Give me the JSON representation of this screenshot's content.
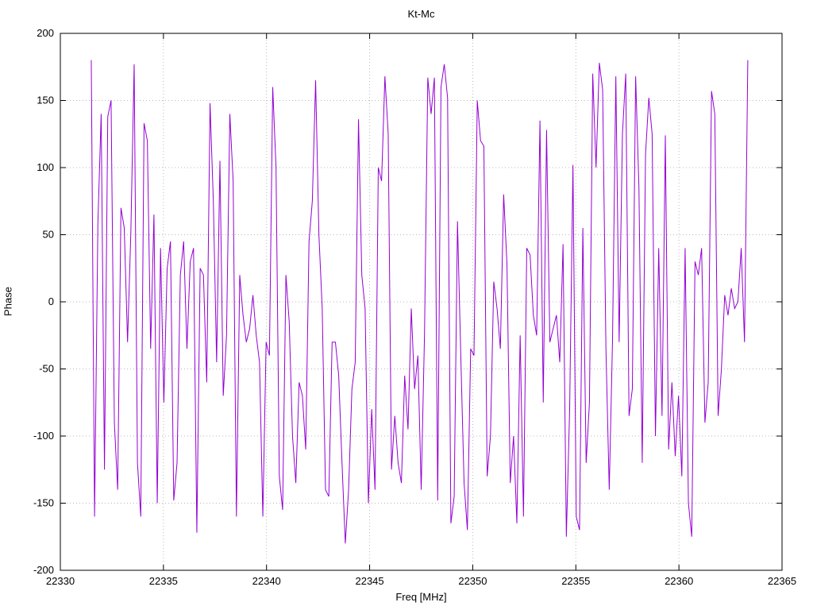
{
  "title": "Kt-Mc",
  "chart_data": {
    "type": "line",
    "title": "Kt-Mc",
    "xlabel": "Freq [MHz]",
    "ylabel": "Phase",
    "xlim": [
      22330,
      22365
    ],
    "ylim": [
      -200,
      200
    ],
    "xticks": [
      22330,
      22335,
      22340,
      22345,
      22350,
      22355,
      22360,
      22365
    ],
    "yticks": [
      -200,
      -150,
      -100,
      -50,
      0,
      50,
      100,
      150,
      200
    ],
    "grid": true,
    "legend": "none",
    "line_color": "#9400d3",
    "series": [
      {
        "name": "Kt-Mc",
        "x_start": 22331.5,
        "x_step": 0.16,
        "values": [
          180,
          -160,
          58,
          140,
          -125,
          138,
          150,
          -90,
          -140,
          70,
          55,
          -30,
          52,
          177,
          -120,
          -160,
          133,
          120,
          -35,
          65,
          -150,
          40,
          -75,
          25,
          45,
          -148,
          -120,
          20,
          45,
          -35,
          30,
          40,
          -172,
          25,
          20,
          -60,
          148,
          75,
          -45,
          105,
          -70,
          -25,
          140,
          90,
          -160,
          20,
          -10,
          -30,
          -20,
          5,
          -25,
          -45,
          -160,
          -30,
          -40,
          160,
          100,
          -130,
          -155,
          20,
          -15,
          -100,
          -135,
          -60,
          -70,
          -110,
          45,
          75,
          165,
          50,
          -5,
          -140,
          -145,
          -30,
          -30,
          -55,
          -120,
          -180,
          -140,
          -65,
          -45,
          136,
          20,
          -5,
          -150,
          -80,
          -140,
          100,
          90,
          168,
          125,
          -125,
          -85,
          -120,
          -135,
          -55,
          -95,
          -5,
          -65,
          -40,
          -140,
          -25,
          167,
          140,
          167,
          -148,
          160,
          177,
          152,
          -165,
          -145,
          60,
          -40,
          -135,
          -170,
          -35,
          -40,
          150,
          120,
          116,
          -130,
          -100,
          15,
          -5,
          -35,
          80,
          28,
          -135,
          -100,
          -165,
          -25,
          -160,
          40,
          35,
          -10,
          -25,
          135,
          -75,
          128,
          -30,
          -20,
          -10,
          -45,
          43,
          -175,
          -80,
          102,
          -160,
          -170,
          55,
          -120,
          -75,
          170,
          100,
          178,
          158,
          -35,
          -140,
          -28,
          168,
          -30,
          125,
          170,
          -85,
          -65,
          168,
          85,
          -120,
          110,
          152,
          125,
          -100,
          40,
          -85,
          124,
          -110,
          -60,
          -115,
          -70,
          -130,
          40,
          -150,
          -175,
          30,
          20,
          40,
          -90,
          -60,
          157,
          140,
          -85,
          -50,
          5,
          -10,
          10,
          -5,
          0,
          40,
          -30,
          180
        ]
      }
    ]
  }
}
